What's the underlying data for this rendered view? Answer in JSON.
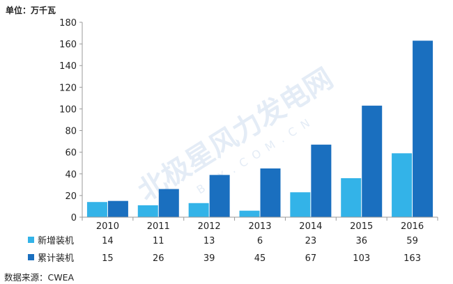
{
  "unit_text": "单位：万千瓦",
  "source_text": "数据来源：CWEA",
  "watermark": {
    "main": "北极星风力发电网",
    "sub": "BJX.COM.CN"
  },
  "colors": {
    "new": "#33b3e8",
    "cumulative": "#1a6fbf",
    "axis": "#999999",
    "text": "#222222",
    "watermark": "#dbe6f3"
  },
  "chart_data": {
    "type": "bar",
    "categories": [
      "2010",
      "2011",
      "2012",
      "2013",
      "2014",
      "2015",
      "2016"
    ],
    "series": [
      {
        "name": "新增装机",
        "values": [
          14,
          11,
          13,
          6,
          23,
          36,
          59
        ],
        "color": "#33b3e8"
      },
      {
        "name": "累计装机",
        "values": [
          15,
          26,
          39,
          45,
          67,
          103,
          163
        ],
        "color": "#1a6fbf"
      }
    ],
    "ylim": [
      0,
      180
    ],
    "yticks": [
      0,
      20,
      40,
      60,
      80,
      100,
      120,
      140,
      160,
      180
    ],
    "ylabel": "",
    "xlabel": "",
    "grid": false,
    "legend": "data-table-bottom"
  }
}
